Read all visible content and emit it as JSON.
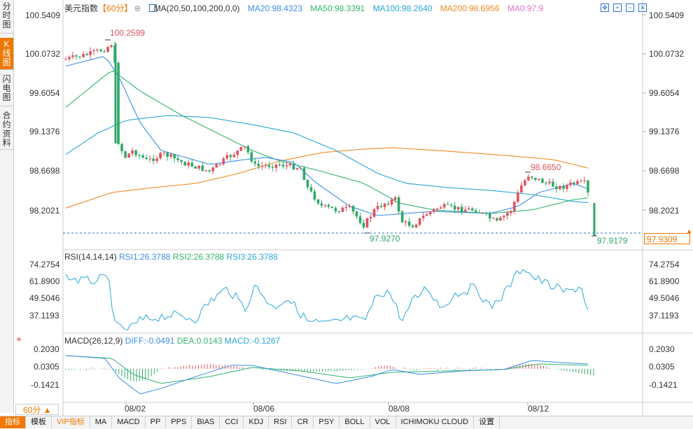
{
  "sidebar": {
    "tabs": [
      {
        "label": "分时图",
        "active": false
      },
      {
        "label": "K线图",
        "active": true
      },
      {
        "label": "闪电图",
        "active": false
      },
      {
        "label": "合约资料",
        "active": false
      }
    ]
  },
  "main": {
    "title": "美元指数",
    "period": "【60分】",
    "ma_label": "MA(20,50,100,200,0,0)",
    "ma_values": [
      {
        "text": "MA20:98.4323",
        "color": "#3b8ee8"
      },
      {
        "text": "MA50:98.3391",
        "color": "#32b46e"
      },
      {
        "text": "MA100:98.2640",
        "color": "#2aa7d6"
      },
      {
        "text": "MA200:98.6956",
        "color": "#f08a24"
      },
      {
        "text": "MA0:97.9",
        "color": "#dd77cc"
      }
    ],
    "y_ticks": [
      "100.5409",
      "100.0732",
      "99.6054",
      "99.1376",
      "98.6698",
      "98.2021"
    ],
    "high_label": "100.2599",
    "mid_high_label": "98.6650",
    "low_label_1": "97.9270",
    "low_label_2": "97.9179",
    "current_price": "97.9309"
  },
  "rsi": {
    "label": "RSI(14,14,14)",
    "values": [
      {
        "text": "RSI1:26.3788",
        "color": "#3b8ee8"
      },
      {
        "text": "RSI2:26.3788",
        "color": "#32b46e"
      },
      {
        "text": "RSI3:26.3788",
        "color": "#2aa7d6"
      }
    ],
    "y_ticks": [
      "74.2754",
      "61.8900",
      "49.5046",
      "37.1193"
    ]
  },
  "macd": {
    "label": "MACD(26,12,9)",
    "values": [
      {
        "text": "DIFF:-0.0491",
        "color": "#3b8ee8"
      },
      {
        "text": "DEA:0.0143",
        "color": "#32b46e"
      },
      {
        "text": "MACD:-0.1267",
        "color": "#2aa7d6"
      }
    ],
    "y_ticks": [
      "0.2030",
      "0.0305",
      "-0.1421"
    ]
  },
  "x_dates": [
    "08/02",
    "08/06",
    "08/08",
    "08/12"
  ],
  "period_dropdown": "60分 ▲",
  "toolbar": [
    "指标",
    "模板",
    "VIP指标",
    "MA",
    "MACD",
    "PP",
    "PPS",
    "BIAS",
    "CCI",
    "KDJ",
    "RSI",
    "CR",
    "PSY",
    "BOLL",
    "VOL",
    "ICHIMOKU CLOUD",
    "设置"
  ],
  "colors": {
    "up": "#e0525c",
    "down": "#2fa869",
    "accent": "#f07700"
  }
}
